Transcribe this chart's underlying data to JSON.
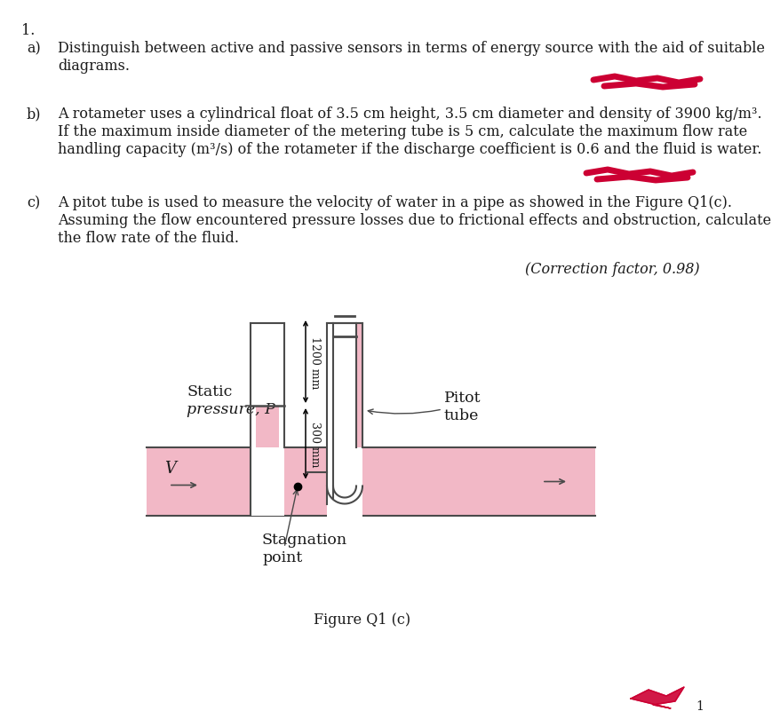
{
  "title_number": "1.",
  "part_a_label": "a)",
  "part_a_line1": "Distinguish between active and passive sensors in terms of energy source with the aid of suitable",
  "part_a_line2": "diagrams.",
  "part_b_label": "b)",
  "part_b_line1": "A rotameter uses a cylindrical float of 3.5 cm height, 3.5 cm diameter and density of 3900 kg/m³.",
  "part_b_line2": "If the maximum inside diameter of the metering tube is 5 cm, calculate the maximum flow rate",
  "part_b_line3": "handling capacity (m³/s) of the rotameter if the discharge coefficient is 0.6 and the fluid is water.",
  "part_c_label": "c)",
  "part_c_line1": "A pitot tube is used to measure the velocity of water in a pipe as showed in the Figure Q1(c).",
  "part_c_line2": "Assuming the flow encountered pressure losses due to frictional effects and obstruction, calculate",
  "part_c_line3": "the flow rate of the fluid.",
  "correction_factor": "(Correction factor, 0.98)",
  "static_label_line1": "Static",
  "static_label_line2": "pressure, P",
  "pitot_label_line1": "Pitot",
  "pitot_label_line2": "tube",
  "stagnation_label_line1": "Stagnation",
  "stagnation_label_line2": "point",
  "dim_1200": "1200 mm",
  "dim_300": "300 mm",
  "velocity_label": "V",
  "figure_caption": "Figure Q1 (c)",
  "pipe_fill_color": "#f2b8c6",
  "pipe_border_color": "#4a4a4a",
  "bg_color": "#ffffff",
  "text_color": "#1a1a1a",
  "red_mark_color": "#cc0033",
  "diagram_bg": "#ffffff",
  "note_color": "#555555",
  "line_lw": 1.5
}
